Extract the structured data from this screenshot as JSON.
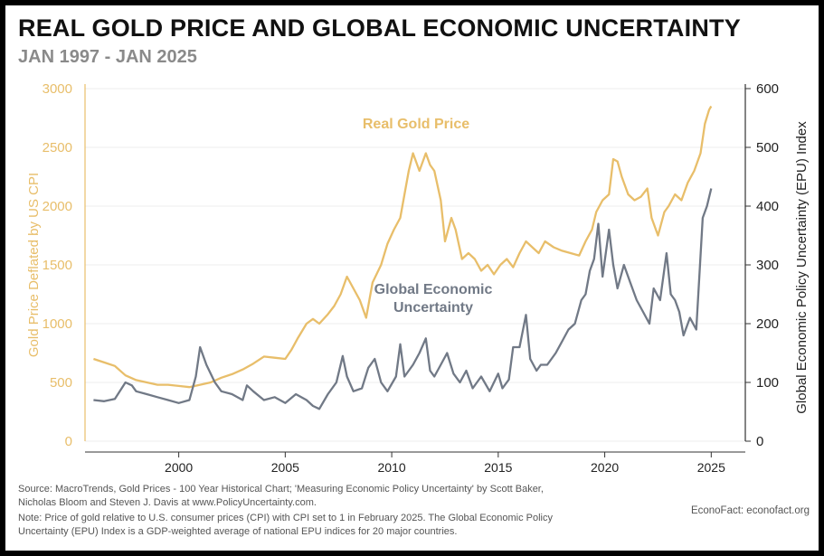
{
  "title": "REAL GOLD PRICE AND GLOBAL ECONOMIC UNCERTAINTY",
  "subtitle": "JAN 1997 - JAN 2025",
  "source_lines": [
    "Source: MacroTrends, Gold Prices - 100 Year Historical Chart; 'Measuring Economic Policy Uncertainty' by Scott Baker,",
    "Nicholas Bloom and Steven J. Davis at www.PolicyUncertainty.com."
  ],
  "note_lines": [
    "Note: Price of gold relative to U.S. consumer prices (CPI) with CPI set to 1 in February 2025. The Global Economic Policy",
    "Uncertainty (EPU) Index is a GDP-weighted average of national EPU indices for 20 major countries."
  ],
  "credit": "EconoFact:  econofact.org",
  "colors": {
    "gold": "#E8BE6A",
    "epu": "#717986",
    "axis": "#333333",
    "grid": "#ececec"
  },
  "chart_data": {
    "type": "line",
    "xlabel": "",
    "xlim": [
      1995.6,
      2026.6
    ],
    "xticks": [
      2000,
      2005,
      2010,
      2015,
      2020,
      2025
    ],
    "y_left": {
      "label": "Gold Price Deflated by US CPI",
      "lim": [
        0,
        3000
      ],
      "ticks": [
        0,
        500,
        1000,
        1500,
        2000,
        2500,
        3000
      ]
    },
    "y_right": {
      "label": "Global Economic Policy Uncertainty (EPU) Index",
      "lim": [
        0,
        600
      ],
      "ticks": [
        0,
        100,
        200,
        300,
        400,
        500,
        600
      ]
    },
    "annotations": [
      {
        "text": "Real Gold Price",
        "series": "Real Gold Price"
      },
      {
        "text": "Global Economic",
        "series": "Global Economic Uncertainty"
      },
      {
        "text": "Uncertainty",
        "series": "Global Economic Uncertainty"
      }
    ],
    "series": [
      {
        "name": "Real Gold Price",
        "axis": "left",
        "x": [
          1996.0,
          1996.5,
          1997.0,
          1997.5,
          1998.0,
          1998.5,
          1999.0,
          1999.5,
          2000.0,
          2000.5,
          2001.0,
          2001.5,
          2002.0,
          2002.5,
          2003.0,
          2003.5,
          2004.0,
          2004.5,
          2005.0,
          2005.3,
          2005.6,
          2006.0,
          2006.3,
          2006.6,
          2007.0,
          2007.3,
          2007.6,
          2007.9,
          2008.2,
          2008.5,
          2008.8,
          2009.1,
          2009.5,
          2009.8,
          2010.1,
          2010.4,
          2010.6,
          2010.8,
          2011.0,
          2011.3,
          2011.6,
          2011.8,
          2012.0,
          2012.3,
          2012.5,
          2012.8,
          2013.0,
          2013.3,
          2013.6,
          2013.9,
          2014.2,
          2014.5,
          2014.8,
          2015.1,
          2015.4,
          2015.7,
          2016.0,
          2016.3,
          2016.6,
          2016.9,
          2017.2,
          2017.6,
          2018.0,
          2018.4,
          2018.8,
          2019.1,
          2019.4,
          2019.6,
          2019.9,
          2020.2,
          2020.4,
          2020.6,
          2020.8,
          2021.1,
          2021.4,
          2021.7,
          2022.0,
          2022.2,
          2022.5,
          2022.8,
          2023.0,
          2023.3,
          2023.6,
          2023.9,
          2024.2,
          2024.5,
          2024.7,
          2024.9,
          2025.0
        ],
        "values": [
          700,
          670,
          640,
          560,
          520,
          500,
          480,
          480,
          470,
          460,
          480,
          500,
          540,
          570,
          610,
          660,
          720,
          710,
          700,
          780,
          880,
          1000,
          1040,
          1000,
          1080,
          1150,
          1250,
          1400,
          1300,
          1200,
          1050,
          1350,
          1500,
          1680,
          1800,
          1900,
          2100,
          2300,
          2450,
          2300,
          2450,
          2350,
          2300,
          2050,
          1700,
          1900,
          1800,
          1550,
          1600,
          1550,
          1450,
          1500,
          1420,
          1500,
          1550,
          1480,
          1600,
          1700,
          1650,
          1600,
          1700,
          1650,
          1620,
          1600,
          1580,
          1700,
          1800,
          1950,
          2050,
          2100,
          2400,
          2380,
          2250,
          2100,
          2050,
          2080,
          2150,
          1900,
          1750,
          1950,
          2000,
          2100,
          2050,
          2200,
          2300,
          2450,
          2700,
          2820,
          2850
        ]
      },
      {
        "name": "Global Economic Uncertainty",
        "axis": "right",
        "x": [
          1996.0,
          1996.5,
          1997.0,
          1997.5,
          1997.8,
          1998.0,
          1998.5,
          1999.0,
          1999.5,
          2000.0,
          2000.5,
          2000.8,
          2001.0,
          2001.3,
          2001.7,
          2002.0,
          2002.5,
          2003.0,
          2003.2,
          2003.5,
          2004.0,
          2004.5,
          2005.0,
          2005.5,
          2006.0,
          2006.3,
          2006.6,
          2007.0,
          2007.4,
          2007.7,
          2007.9,
          2008.2,
          2008.6,
          2008.9,
          2009.2,
          2009.5,
          2009.8,
          2010.2,
          2010.4,
          2010.6,
          2011.0,
          2011.3,
          2011.6,
          2011.8,
          2012.0,
          2012.3,
          2012.6,
          2012.9,
          2013.2,
          2013.5,
          2013.8,
          2014.2,
          2014.6,
          2015.0,
          2015.2,
          2015.5,
          2015.7,
          2016.0,
          2016.3,
          2016.5,
          2016.8,
          2017.0,
          2017.3,
          2017.7,
          2018.0,
          2018.3,
          2018.6,
          2018.9,
          2019.1,
          2019.3,
          2019.5,
          2019.7,
          2019.9,
          2020.2,
          2020.4,
          2020.6,
          2020.9,
          2021.2,
          2021.5,
          2021.8,
          2022.1,
          2022.3,
          2022.6,
          2022.9,
          2023.1,
          2023.3,
          2023.5,
          2023.7,
          2024.0,
          2024.3,
          2024.6,
          2024.8,
          2025.0
        ],
        "values": [
          70,
          68,
          72,
          100,
          95,
          85,
          80,
          75,
          70,
          65,
          70,
          110,
          160,
          130,
          100,
          85,
          80,
          70,
          95,
          85,
          70,
          75,
          65,
          80,
          70,
          60,
          55,
          80,
          100,
          145,
          110,
          85,
          90,
          125,
          140,
          100,
          85,
          110,
          165,
          110,
          130,
          150,
          175,
          120,
          110,
          130,
          150,
          115,
          100,
          120,
          90,
          110,
          85,
          115,
          90,
          105,
          160,
          160,
          215,
          140,
          120,
          130,
          130,
          150,
          170,
          190,
          200,
          240,
          250,
          290,
          310,
          370,
          280,
          360,
          300,
          260,
          300,
          270,
          240,
          220,
          200,
          260,
          240,
          320,
          250,
          240,
          220,
          180,
          210,
          190,
          380,
          400,
          430
        ]
      }
    ]
  }
}
